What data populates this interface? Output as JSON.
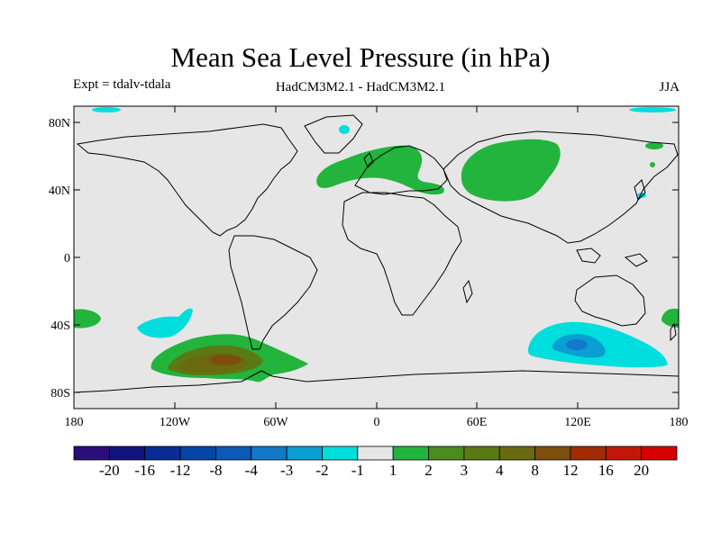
{
  "title": "Mean Sea Level Pressure (in hPa)",
  "subtitle_left": "Expt = tdalv-tdala",
  "subtitle_center": "HadCM3M2.1 - HadCM3M2.1",
  "subtitle_right": "JJA",
  "map": {
    "lat_labels": [
      "80N",
      "40N",
      "0",
      "40S",
      "80S"
    ],
    "lon_labels": [
      "180",
      "120W",
      "60W",
      "0",
      "60E",
      "120E",
      "180"
    ],
    "colors": {
      "ocean_land_fill": "#e6e6e6",
      "neg_1": "#00dddd",
      "neg_2": "#00aadd",
      "neg_3": "#0088cc",
      "pos_1": "#22b43c",
      "pos_2": "#4a8c1e",
      "pos_3": "#6b6a10",
      "pos_4": "#7d4e0c"
    }
  },
  "colorbar": {
    "labels": [
      "-20",
      "-16",
      "-12",
      "-8",
      "-4",
      "-3",
      "-2",
      "-1",
      "1",
      "2",
      "3",
      "4",
      "8",
      "12",
      "16",
      "20"
    ],
    "colors": [
      "#2a0e7a",
      "#10127e",
      "#082c94",
      "#0545a8",
      "#0a5ab8",
      "#1478c8",
      "#0a9ed2",
      "#00dddd",
      "#e6e6e6",
      "#22b43c",
      "#4a8c1e",
      "#5a7a14",
      "#6b6a10",
      "#7d4e0c",
      "#a02c06",
      "#c01808",
      "#d40000"
    ]
  }
}
